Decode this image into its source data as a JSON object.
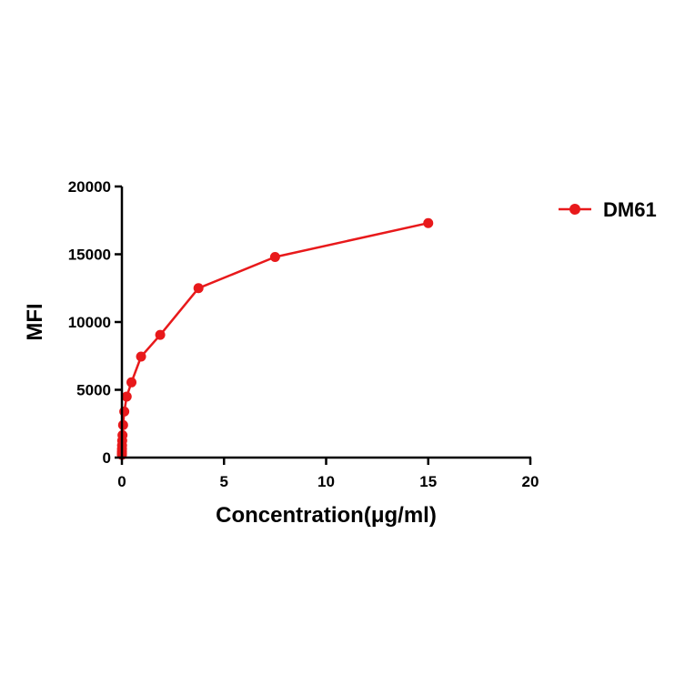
{
  "chart_data": {
    "type": "line",
    "title": "",
    "xlabel": "Concentration(μg/ml)",
    "ylabel": "MFI",
    "xlim": [
      0,
      20
    ],
    "ylim": [
      0,
      20000
    ],
    "x_ticks": [
      0,
      5,
      10,
      15,
      20
    ],
    "y_ticks": [
      0,
      5000,
      10000,
      15000,
      20000
    ],
    "grid": false,
    "legend_position": "top-right",
    "series": [
      {
        "name": "DM61",
        "color": "#e8191b",
        "marker": "circle",
        "x": [
          0.0005,
          0.0009,
          0.0018,
          0.0037,
          0.0073,
          0.0146,
          0.0293,
          0.0586,
          0.117,
          0.234,
          0.469,
          0.938,
          1.875,
          3.75,
          7.5,
          15
        ],
        "y": [
          200,
          300,
          450,
          650,
          900,
          1250,
          1650,
          2400,
          3400,
          4500,
          5550,
          7450,
          9050,
          12500,
          14800,
          17300
        ]
      }
    ]
  }
}
